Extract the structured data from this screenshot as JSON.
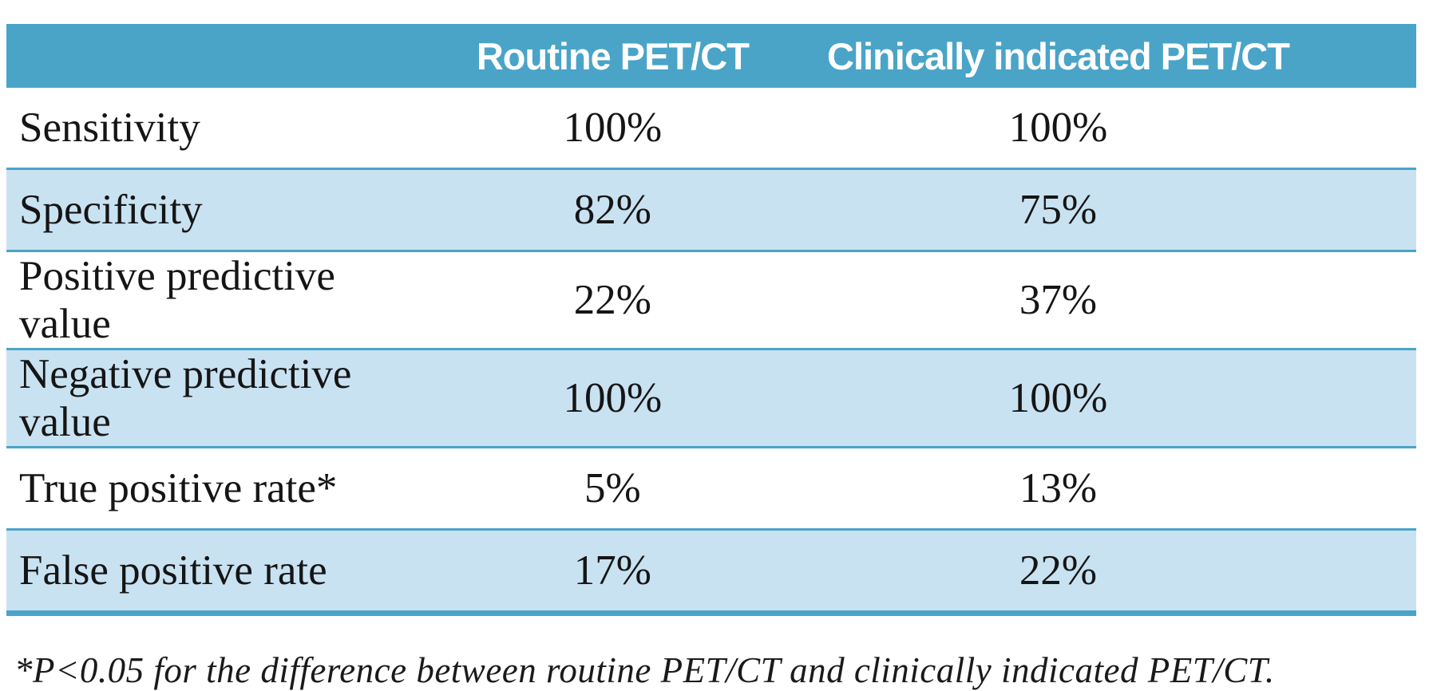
{
  "table": {
    "header": {
      "col_label": "",
      "col_routine": "Routine PET/CT",
      "col_clinical": "Clinically indicated PET/CT"
    },
    "rows": [
      {
        "label": "Sensitivity",
        "routine": "100%",
        "clinical": "100%"
      },
      {
        "label": "Specificity",
        "routine": "82%",
        "clinical": "75%"
      },
      {
        "label": "Positive predictive value",
        "routine": "22%",
        "clinical": "37%"
      },
      {
        "label": "Negative predictive value",
        "routine": "100%",
        "clinical": "100%"
      },
      {
        "label": "True positive rate*",
        "routine": "5%",
        "clinical": "13%"
      },
      {
        "label": "False positive rate",
        "routine": "17%",
        "clinical": "22%"
      }
    ],
    "footnote": "*P<0.05 for the difference between routine PET/CT and clinically indicated PET/CT."
  },
  "colors": {
    "header_bg": "#4aa4c8",
    "row_alt_bg": "#c9e2f2",
    "rule": "#4aa4c8",
    "header_text": "#ffffff",
    "body_text": "#151515"
  },
  "chart_data": {
    "type": "table",
    "columns": [
      "",
      "Routine PET/CT",
      "Clinically indicated PET/CT"
    ],
    "rows": [
      [
        "Sensitivity",
        "100%",
        "100%"
      ],
      [
        "Specificity",
        "82%",
        "75%"
      ],
      [
        "Positive predictive value",
        "22%",
        "37%"
      ],
      [
        "Negative predictive value",
        "100%",
        "100%"
      ],
      [
        "True positive rate*",
        "5%",
        "13%"
      ],
      [
        "False positive rate",
        "17%",
        "22%"
      ]
    ],
    "footnote": "*P<0.05 for the difference between routine PET/CT and clinically indicated PET/CT."
  }
}
